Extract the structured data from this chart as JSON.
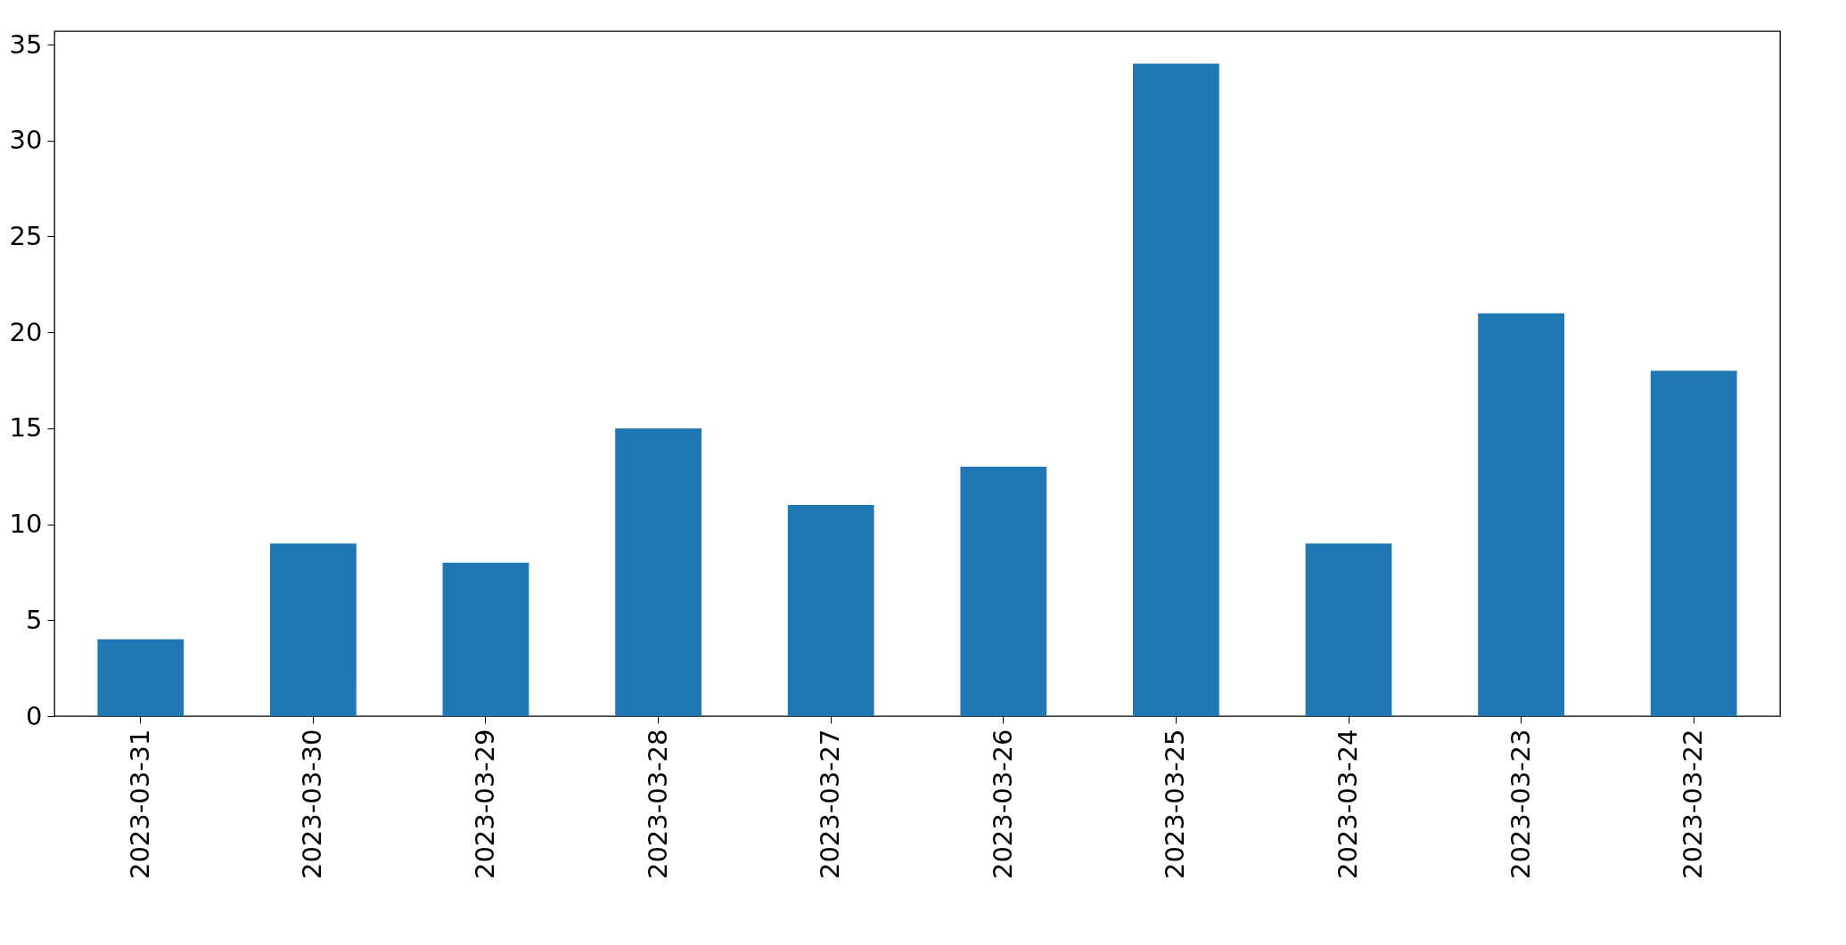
{
  "chart_data": {
    "type": "bar",
    "categories": [
      "2023-03-31",
      "2023-03-30",
      "2023-03-29",
      "2023-03-28",
      "2023-03-27",
      "2023-03-26",
      "2023-03-25",
      "2023-03-24",
      "2023-03-23",
      "2023-03-22"
    ],
    "values": [
      4,
      9,
      8,
      15,
      11,
      13,
      34,
      9,
      21,
      18
    ],
    "color": "#1f77b4",
    "ylim": [
      0,
      35.7
    ],
    "yticks": [
      0,
      5,
      10,
      15,
      20,
      25,
      30,
      35
    ],
    "grid": false
  }
}
